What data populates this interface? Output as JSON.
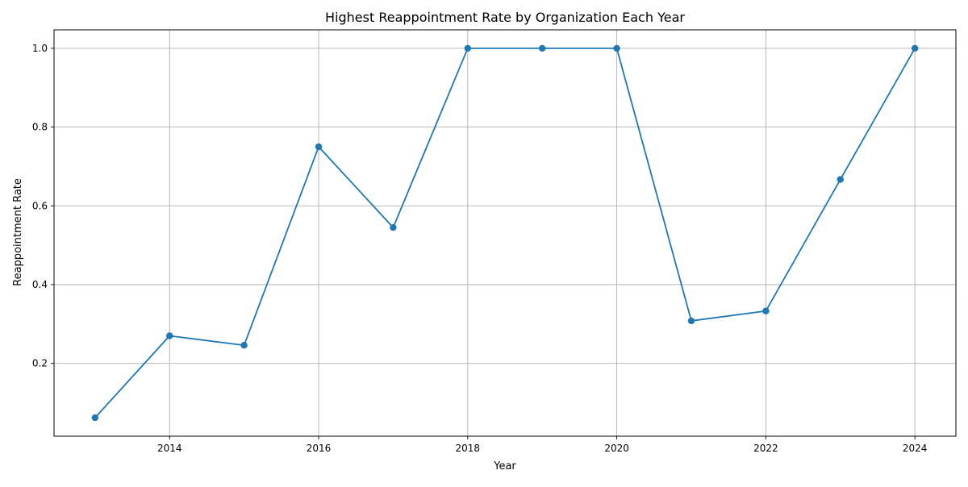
{
  "chart_data": {
    "type": "line",
    "title": "Highest Reappointment Rate by Organization Each Year",
    "xlabel": "Year",
    "ylabel": "Reappointment Rate",
    "x": [
      2013,
      2014,
      2015,
      2016,
      2017,
      2018,
      2019,
      2020,
      2021,
      2022,
      2023,
      2024
    ],
    "series": [
      {
        "values": [
          0.062,
          0.27,
          0.246,
          0.75,
          0.545,
          1.0,
          1.0,
          1.0,
          0.308,
          0.333,
          0.667,
          1.0
        ],
        "color": "#1f77b4",
        "marker": "circle"
      }
    ],
    "xlim": [
      2012.45,
      2024.55
    ],
    "ylim": [
      0.0151,
      1.0469
    ],
    "xticks": [
      2014,
      2016,
      2018,
      2020,
      2022,
      2024
    ],
    "yticks": [
      0.2,
      0.4,
      0.6,
      0.8,
      1.0
    ],
    "xtick_labels": [
      "2014",
      "2016",
      "2018",
      "2020",
      "2022",
      "2024"
    ],
    "ytick_labels": [
      "0.2",
      "0.4",
      "0.6",
      "0.8",
      "1.0"
    ],
    "grid": true,
    "legend": "none"
  }
}
